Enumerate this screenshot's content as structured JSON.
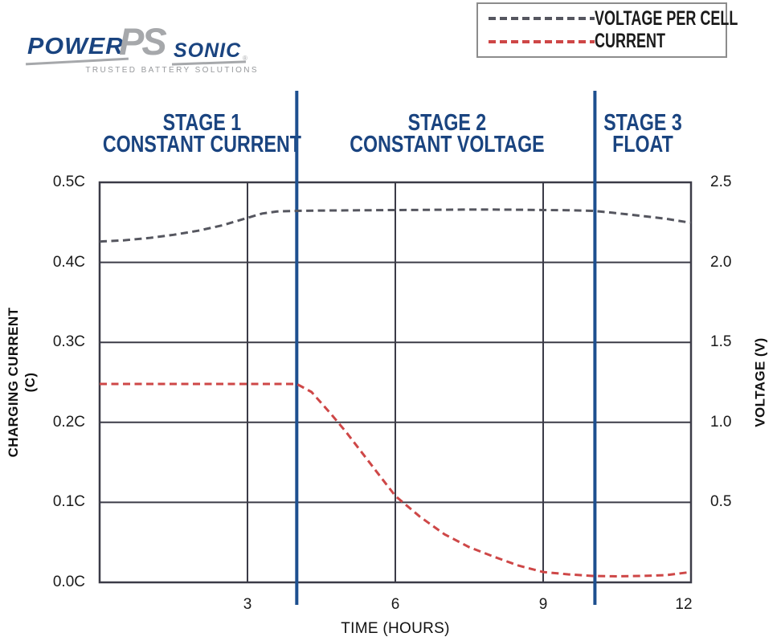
{
  "logo": {
    "power": "POWER",
    "ps": "PS",
    "sonic": "SONIC",
    "registered": "®",
    "tagline": "TRUSTED BATTERY SOLUTIONS"
  },
  "legend": {
    "items": [
      {
        "label": "VOLTAGE PER CELL",
        "color": "#55565F"
      },
      {
        "label": "CURRENT",
        "color": "#CE4747"
      }
    ]
  },
  "stages": [
    {
      "line1": "STAGE 1",
      "line2": "CONSTANT CURRENT"
    },
    {
      "line1": "STAGE 2",
      "line2": "CONSTANT VOLTAGE"
    },
    {
      "line1": "STAGE 3",
      "line2": "FLOAT"
    }
  ],
  "chart_data": {
    "type": "line",
    "x_axis": {
      "label": "TIME (HOURS)",
      "ticks": [
        "3",
        "6",
        "9",
        "12"
      ],
      "tick_hours": [
        3,
        6,
        9,
        12
      ],
      "range": [
        0,
        12
      ],
      "gridline_hours": [
        3,
        6,
        9
      ]
    },
    "y_left": {
      "label": "CHARGING CURRENT",
      "label2": "(C)",
      "ticks": [
        "0.5C",
        "0.4C",
        "0.3C",
        "0.2C",
        "0.1C",
        "0.0C"
      ],
      "range": [
        0,
        0.5
      ]
    },
    "y_right": {
      "label": "VOLTAGE (V)",
      "ticks": [
        "2.5",
        "2.0",
        "1.5",
        "1.0",
        "0.5"
      ],
      "range": [
        0,
        2.5
      ]
    },
    "grid": true,
    "legend_position": "top-right",
    "stage_boundaries_hours": [
      4.0,
      10.05
    ],
    "series": [
      {
        "name": "VOLTAGE PER CELL",
        "axis": "right",
        "color": "#55565F",
        "points": [
          [
            0,
            2.13
          ],
          [
            0.5,
            2.138
          ],
          [
            1,
            2.152
          ],
          [
            1.5,
            2.172
          ],
          [
            2,
            2.198
          ],
          [
            2.5,
            2.232
          ],
          [
            3,
            2.278
          ],
          [
            3.3,
            2.305
          ],
          [
            3.6,
            2.318
          ],
          [
            4,
            2.322
          ],
          [
            4.5,
            2.324
          ],
          [
            5,
            2.325
          ],
          [
            5.5,
            2.326
          ],
          [
            6,
            2.327
          ],
          [
            6.5,
            2.328
          ],
          [
            7,
            2.329
          ],
          [
            7.5,
            2.33
          ],
          [
            8,
            2.33
          ],
          [
            8.5,
            2.329
          ],
          [
            9,
            2.327
          ],
          [
            9.5,
            2.326
          ],
          [
            10,
            2.322
          ],
          [
            10.3,
            2.314
          ],
          [
            10.7,
            2.3
          ],
          [
            11,
            2.29
          ],
          [
            11.5,
            2.272
          ],
          [
            12,
            2.247
          ]
        ]
      },
      {
        "name": "CURRENT",
        "axis": "left",
        "color": "#CE4747",
        "points": [
          [
            0,
            0.248
          ],
          [
            0.5,
            0.248
          ],
          [
            1,
            0.248
          ],
          [
            1.5,
            0.248
          ],
          [
            2,
            0.248
          ],
          [
            2.5,
            0.248
          ],
          [
            3,
            0.248
          ],
          [
            3.5,
            0.248
          ],
          [
            4,
            0.248
          ],
          [
            4.3,
            0.238
          ],
          [
            4.7,
            0.21
          ],
          [
            5,
            0.188
          ],
          [
            5.5,
            0.148
          ],
          [
            6,
            0.108
          ],
          [
            6.5,
            0.082
          ],
          [
            7,
            0.06
          ],
          [
            7.5,
            0.044
          ],
          [
            8,
            0.032
          ],
          [
            8.5,
            0.021
          ],
          [
            9,
            0.013
          ],
          [
            9.5,
            0.01
          ],
          [
            10,
            0.008
          ],
          [
            10.5,
            0.0075
          ],
          [
            11,
            0.008
          ],
          [
            11.5,
            0.009
          ],
          [
            12,
            0.013
          ]
        ]
      }
    ]
  },
  "colors": {
    "stage_text_navy": "#1A4480",
    "stage_line_navy": "#1D4F8F",
    "voltage_gray": "#55565F",
    "current_red": "#CE4747",
    "grid": "#3B3B47",
    "legend_border": "#8C8C8C",
    "logo_navy": "#1A4480",
    "logo_silver": "#A6A8AB",
    "tagline_gray": "#97999C"
  }
}
